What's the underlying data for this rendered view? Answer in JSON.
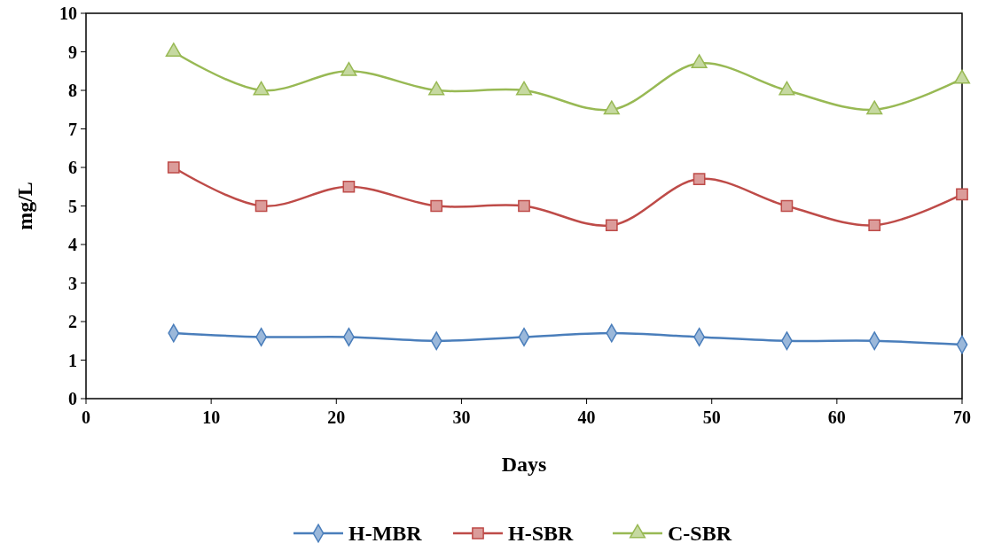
{
  "chart_data": {
    "type": "line",
    "xlabel": "Days",
    "ylabel": "mg/L",
    "x": [
      7,
      14,
      21,
      28,
      35,
      42,
      49,
      56,
      63,
      70
    ],
    "series": [
      {
        "name": "H-MBR",
        "color": "#4a7ebb",
        "marker": "diamond",
        "values": [
          1.7,
          1.6,
          1.6,
          1.5,
          1.6,
          1.7,
          1.6,
          1.5,
          1.5,
          1.4
        ]
      },
      {
        "name": "H-SBR",
        "color": "#be4b48",
        "marker": "square",
        "values": [
          6,
          5,
          5.5,
          5,
          5,
          4.5,
          5.7,
          5,
          4.5,
          5.3
        ]
      },
      {
        "name": "C-SBR",
        "color": "#98b954",
        "marker": "triangle",
        "values": [
          9,
          8,
          8.5,
          8,
          8,
          7.5,
          8.7,
          8,
          7.5,
          8.3
        ]
      }
    ],
    "xlim": [
      0,
      70
    ],
    "xticks": [
      0,
      10,
      20,
      30,
      40,
      50,
      60,
      70
    ],
    "ylim": [
      0,
      10
    ],
    "yticks": [
      0,
      1,
      2,
      3,
      4,
      5,
      6,
      7,
      8,
      9,
      10
    ],
    "grid": false,
    "legend": "bottom",
    "line_style": "solid"
  }
}
